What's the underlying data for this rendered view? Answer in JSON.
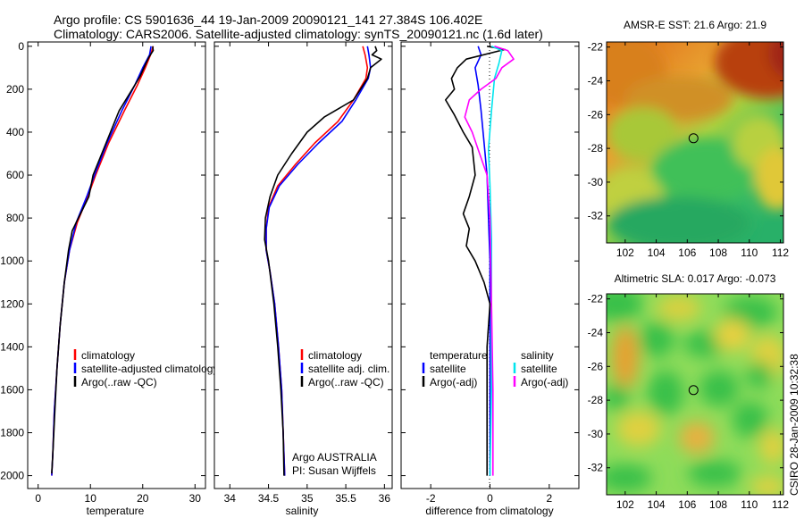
{
  "header": {
    "line1": "Argo profile: CS 5901636_44 19-Jan-2009 20090121_141 27.384S 106.402E",
    "line2": "Climatology: CARS2006. Satellite-adjusted climatology: synTS_20090121.nc (1.6d later)"
  },
  "colors": {
    "climatology": "#ff0000",
    "satellite": "#0000ff",
    "argo": "#000000",
    "satellite_salinity": "#00e5ee",
    "argo_adj_salinity": "#ff00ff"
  },
  "chart_data": [
    {
      "type": "line",
      "id": "temperature",
      "xlabel": "temperature",
      "ylabel": "",
      "xlim": [
        -2,
        32
      ],
      "ylim": [
        2060,
        -20
      ],
      "y_inverted": true,
      "xticks": [
        "0",
        "10",
        "20",
        "30"
      ],
      "yticks": [
        "0",
        "200",
        "400",
        "600",
        "800",
        "1000",
        "1200",
        "1400",
        "1600",
        "1800",
        "2000"
      ],
      "legend": [
        "climatology",
        "satellite-adjusted climatology",
        "Argo(..raw -QC)"
      ],
      "series": [
        {
          "name": "climatology",
          "color_key": "climatology",
          "points": [
            [
              22,
              0
            ],
            [
              21.5,
              40
            ],
            [
              20.5,
              100
            ],
            [
              19,
              180
            ],
            [
              16.5,
              300
            ],
            [
              13.5,
              450
            ],
            [
              11,
              600
            ],
            [
              9.5,
              700
            ],
            [
              7.5,
              820
            ],
            [
              6,
              950
            ],
            [
              5,
              1100
            ],
            [
              4.2,
              1300
            ],
            [
              3.6,
              1500
            ],
            [
              3.1,
              1700
            ],
            [
              2.8,
              1900
            ],
            [
              2.6,
              2000
            ]
          ]
        },
        {
          "name": "satellite-adjusted climatology",
          "color_key": "satellite",
          "points": [
            [
              21.6,
              0
            ],
            [
              21.3,
              40
            ],
            [
              20,
              100
            ],
            [
              18.5,
              180
            ],
            [
              16,
              300
            ],
            [
              13.2,
              450
            ],
            [
              10.8,
              600
            ],
            [
              9.3,
              700
            ],
            [
              7.3,
              820
            ],
            [
              6,
              950
            ],
            [
              5,
              1100
            ],
            [
              4.2,
              1300
            ],
            [
              3.6,
              1500
            ],
            [
              3.1,
              1700
            ],
            [
              2.8,
              1900
            ],
            [
              2.6,
              2000
            ]
          ]
        },
        {
          "name": "Argo(..raw -QC)",
          "color_key": "argo",
          "points": [
            [
              21.9,
              0
            ],
            [
              22,
              20
            ],
            [
              21.2,
              50
            ],
            [
              20.6,
              80
            ],
            [
              19.5,
              140
            ],
            [
              18,
              200
            ],
            [
              15.5,
              300
            ],
            [
              13,
              450
            ],
            [
              10.5,
              600
            ],
            [
              9.7,
              700
            ],
            [
              7.5,
              810
            ],
            [
              6.5,
              860
            ],
            [
              5.8,
              950
            ],
            [
              5,
              1100
            ],
            [
              4.2,
              1300
            ],
            [
              3.6,
              1500
            ],
            [
              3.2,
              1700
            ],
            [
              2.8,
              1900
            ],
            [
              2.6,
              1990
            ]
          ]
        }
      ]
    },
    {
      "type": "line",
      "id": "salinity",
      "xlabel": "salinity",
      "ylabel": "",
      "xlim": [
        33.8,
        36.1
      ],
      "ylim": [
        2060,
        -20
      ],
      "y_inverted": true,
      "xticks": [
        "34",
        "34.5",
        "35",
        "35.5",
        "36"
      ],
      "legend": [
        "climatology",
        "satellite adj. clim.",
        "Argo(..raw -QC)"
      ],
      "annotation": [
        "Argo AUSTRALIA",
        "PI: Susan Wijffels"
      ],
      "series": [
        {
          "name": "climatology",
          "color_key": "climatology",
          "points": [
            [
              35.72,
              0
            ],
            [
              35.75,
              40
            ],
            [
              35.78,
              100
            ],
            [
              35.76,
              150
            ],
            [
              35.6,
              250
            ],
            [
              35.4,
              350
            ],
            [
              35.1,
              450
            ],
            [
              34.85,
              550
            ],
            [
              34.62,
              650
            ],
            [
              34.5,
              750
            ],
            [
              34.47,
              850
            ],
            [
              34.47,
              950
            ],
            [
              34.52,
              1050
            ],
            [
              34.58,
              1200
            ],
            [
              34.63,
              1400
            ],
            [
              34.67,
              1600
            ],
            [
              34.69,
              1800
            ],
            [
              34.71,
              2000
            ]
          ]
        },
        {
          "name": "satellite adj. clim.",
          "color_key": "satellite",
          "points": [
            [
              35.78,
              0
            ],
            [
              35.8,
              40
            ],
            [
              35.82,
              100
            ],
            [
              35.79,
              150
            ],
            [
              35.63,
              250
            ],
            [
              35.45,
              350
            ],
            [
              35.15,
              450
            ],
            [
              34.88,
              550
            ],
            [
              34.64,
              650
            ],
            [
              34.51,
              750
            ],
            [
              34.47,
              850
            ],
            [
              34.47,
              950
            ],
            [
              34.52,
              1050
            ],
            [
              34.58,
              1200
            ],
            [
              34.63,
              1400
            ],
            [
              34.67,
              1600
            ],
            [
              34.69,
              1800
            ],
            [
              34.71,
              2000
            ]
          ]
        },
        {
          "name": "Argo(..raw -QC)",
          "color_key": "argo",
          "points": [
            [
              35.88,
              0
            ],
            [
              35.9,
              20
            ],
            [
              35.84,
              40
            ],
            [
              35.96,
              60
            ],
            [
              35.82,
              100
            ],
            [
              35.78,
              150
            ],
            [
              35.6,
              250
            ],
            [
              35.22,
              330
            ],
            [
              35,
              400
            ],
            [
              34.8,
              500
            ],
            [
              34.62,
              600
            ],
            [
              34.52,
              700
            ],
            [
              34.46,
              800
            ],
            [
              34.45,
              900
            ],
            [
              34.5,
              1000
            ],
            [
              34.57,
              1200
            ],
            [
              34.62,
              1400
            ],
            [
              34.66,
              1600
            ],
            [
              34.69,
              1800
            ],
            [
              34.7,
              2000
            ]
          ]
        }
      ]
    },
    {
      "type": "line",
      "id": "difference",
      "xlabel": "difference from climatology",
      "ylabel": "",
      "xlim": [
        -3,
        3
      ],
      "ylim": [
        2060,
        -20
      ],
      "y_inverted": true,
      "xticks": [
        "-2",
        "0",
        "2"
      ],
      "legend": [
        "temperature",
        "satellite",
        "Argo(-adj)",
        "salinity",
        "satellite",
        "Argo(-adj)"
      ],
      "series": [
        {
          "name": "temperature satellite",
          "color_key": "satellite",
          "points": [
            [
              -0.4,
              0
            ],
            [
              -0.3,
              40
            ],
            [
              -0.5,
              100
            ],
            [
              -0.4,
              180
            ],
            [
              -0.3,
              300
            ],
            [
              -0.2,
              450
            ],
            [
              -0.1,
              600
            ],
            [
              -0.05,
              800
            ],
            [
              0,
              1000
            ],
            [
              0,
              2000
            ]
          ]
        },
        {
          "name": "temperature Argo(-adj)",
          "color_key": "argo",
          "points": [
            [
              -0.1,
              0
            ],
            [
              0.5,
              15
            ],
            [
              -0.8,
              60
            ],
            [
              -1.1,
              100
            ],
            [
              -1.3,
              150
            ],
            [
              -1.2,
              200
            ],
            [
              -1.5,
              250
            ],
            [
              -1.2,
              320
            ],
            [
              -0.9,
              400
            ],
            [
              -0.6,
              470
            ],
            [
              -0.5,
              600
            ],
            [
              -0.7,
              700
            ],
            [
              -0.9,
              780
            ],
            [
              -0.7,
              850
            ],
            [
              -0.8,
              930
            ],
            [
              -0.5,
              1000
            ],
            [
              -0.2,
              1100
            ],
            [
              0,
              1200
            ],
            [
              -0.1,
              1400
            ],
            [
              -0.1,
              1700
            ],
            [
              -0.1,
              2000
            ]
          ]
        },
        {
          "name": "salinity satellite",
          "color_key": "satellite_salinity",
          "points": [
            [
              0.05,
              0
            ],
            [
              0.4,
              20
            ],
            [
              0.3,
              80
            ],
            [
              0.15,
              150
            ],
            [
              0.05,
              300
            ],
            [
              -0.05,
              480
            ],
            [
              0,
              650
            ],
            [
              0.05,
              900
            ],
            [
              0.05,
              1200
            ],
            [
              0.05,
              1600
            ],
            [
              0,
              2000
            ]
          ]
        },
        {
          "name": "salinity Argo(-adj)",
          "color_key": "argo_adj_salinity",
          "points": [
            [
              0.15,
              0
            ],
            [
              0.6,
              20
            ],
            [
              0.8,
              60
            ],
            [
              0.4,
              100
            ],
            [
              0.2,
              150
            ],
            [
              -0.3,
              200
            ],
            [
              -0.7,
              250
            ],
            [
              -0.85,
              330
            ],
            [
              -0.6,
              400
            ],
            [
              -0.4,
              480
            ],
            [
              -0.1,
              600
            ],
            [
              0,
              800
            ],
            [
              0.05,
              1200
            ],
            [
              0.1,
              1600
            ],
            [
              0.1,
              2000
            ]
          ]
        }
      ]
    },
    {
      "type": "heatmap",
      "id": "sst_map",
      "title": "AMSR-E SST: 21.6  Argo: 21.9",
      "xlim": [
        100.8,
        112.2
      ],
      "ylim": [
        -33.6,
        -21.7
      ],
      "xticks": [
        "102",
        "104",
        "106",
        "108",
        "110",
        "112"
      ],
      "yticks": [
        "-22",
        "-24",
        "-26",
        "-28",
        "-30",
        "-32"
      ],
      "marker": {
        "lon": 106.4,
        "lat": -27.4
      }
    },
    {
      "type": "heatmap",
      "id": "sla_map",
      "title": "Altimetric SLA: 0.017  Argo: -0.073",
      "xlim": [
        100.8,
        112.2
      ],
      "ylim": [
        -33.6,
        -21.7
      ],
      "xticks": [
        "102",
        "104",
        "106",
        "108",
        "110",
        "112"
      ],
      "yticks": [
        "-22",
        "-24",
        "-26",
        "-28",
        "-30",
        "-32"
      ],
      "marker": {
        "lon": 106.4,
        "lat": -27.4
      }
    }
  ],
  "footer": {
    "stamp": "CSIRO 28-Jan-2009 10:32:38"
  }
}
